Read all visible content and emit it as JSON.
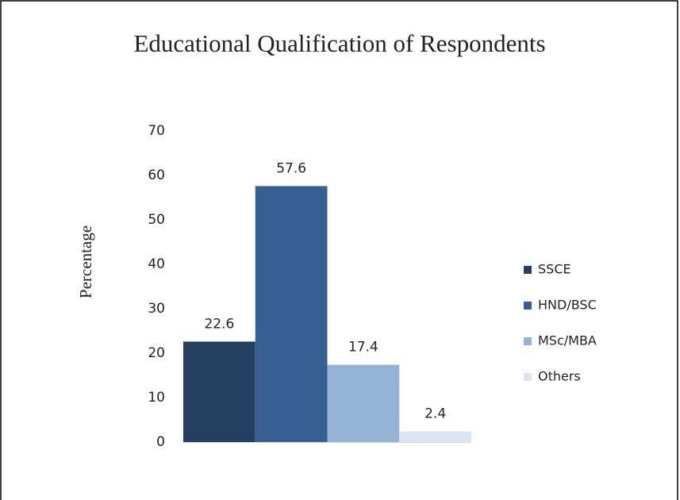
{
  "chart_data": {
    "type": "bar",
    "title": "Educational  Qualification  of Respondents",
    "ylabel": "Percentage",
    "categories": [
      null
    ],
    "series": [
      {
        "name": "SSCE",
        "color": "#243f60",
        "values": [
          22.6
        ]
      },
      {
        "name": "HND/BSC",
        "color": "#366092",
        "values": [
          57.6
        ]
      },
      {
        "name": "MSc/MBA",
        "color": "#95b3d7",
        "values": [
          17.4
        ]
      },
      {
        "name": "Others",
        "color": "#dbe5f1",
        "values": [
          2.4
        ]
      }
    ],
    "ylim": [
      0,
      70
    ],
    "yticks": [
      0,
      10,
      20,
      30,
      40,
      50,
      60,
      70
    ],
    "grid": false,
    "legend": "right"
  }
}
